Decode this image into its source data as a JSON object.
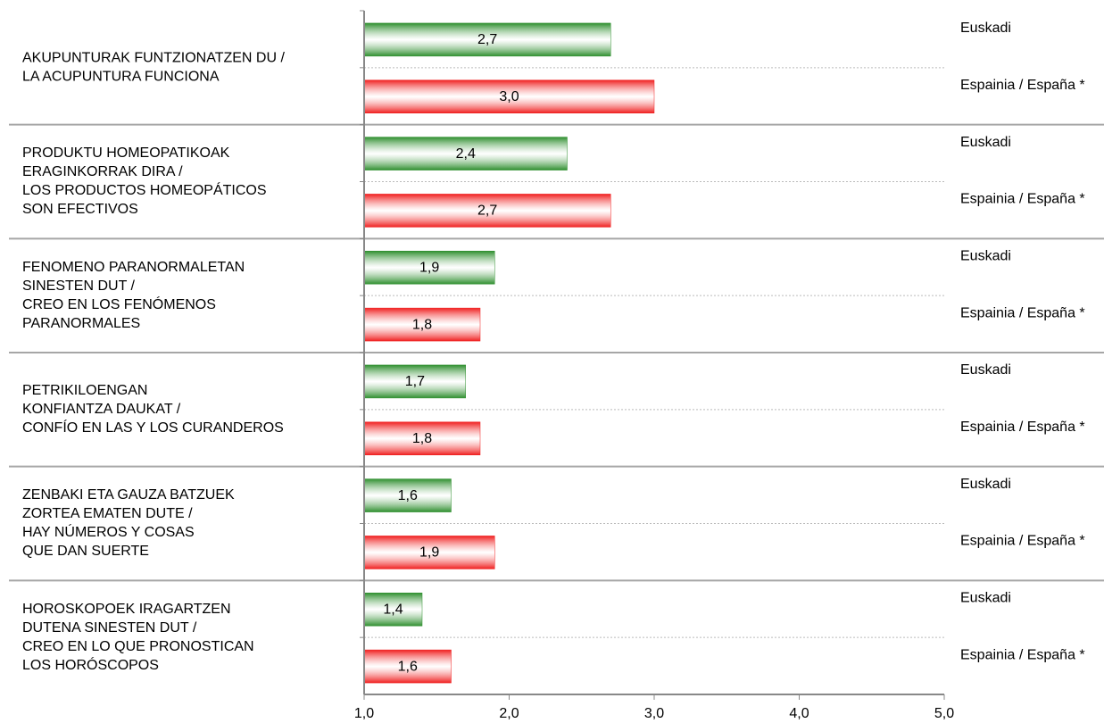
{
  "chart_data": {
    "type": "bar",
    "orientation": "horizontal",
    "categories": [
      [
        "AKUPUNTURAK FUNTZIONATZEN DU /",
        "LA ACUPUNTURA FUNCIONA"
      ],
      [
        "PRODUKTU HOMEOPATIKOAK",
        "ERAGINKORRAK DIRA /",
        "LOS PRODUCTOS HOMEOPÁTICOS",
        "SON EFECTIVOS"
      ],
      [
        "FENOMENO PARANORMALETAN",
        "SINESTEN DUT /",
        "CREO EN LOS FENÓMENOS",
        "PARANORMALES"
      ],
      [
        "PETRIKILOENGAN",
        "KONFIANTZA DAUKAT /",
        "CONFÍO EN LAS Y LOS CURANDEROS"
      ],
      [
        "ZENBAKI ETA GAUZA BATZUEK",
        "ZORTEA EMATEN DUTE /",
        "HAY NÚMEROS Y COSAS",
        "QUE DAN SUERTE"
      ],
      [
        "HOROSKOPOEK IRAGARTZEN",
        "DUTENA SINESTEN DUT /",
        "CREO EN LO QUE PRONOSTICAN",
        "LOS HORÓSCOPOS"
      ]
    ],
    "series": [
      {
        "name": "Euskadi",
        "color": "#2f8f2f",
        "values": [
          2.7,
          2.4,
          1.9,
          1.7,
          1.6,
          1.4
        ],
        "value_labels": [
          "2,7",
          "2,4",
          "1,9",
          "1,7",
          "1,6",
          "1,4"
        ]
      },
      {
        "name": "Espainia / España *",
        "color": "#f02020",
        "values": [
          3.0,
          2.7,
          1.8,
          1.8,
          1.9,
          1.6
        ],
        "value_labels": [
          "3,0",
          "2,7",
          "1,8",
          "1,8",
          "1,9",
          "1,6"
        ]
      }
    ],
    "xlim": [
      1,
      5
    ],
    "xticks": [
      {
        "value": 1,
        "label": "1,0"
      },
      {
        "value": 2,
        "label": "2,0"
      },
      {
        "value": 3,
        "label": "3,0"
      },
      {
        "value": 4,
        "label": "4,0"
      },
      {
        "value": 5,
        "label": "5,0"
      }
    ]
  }
}
